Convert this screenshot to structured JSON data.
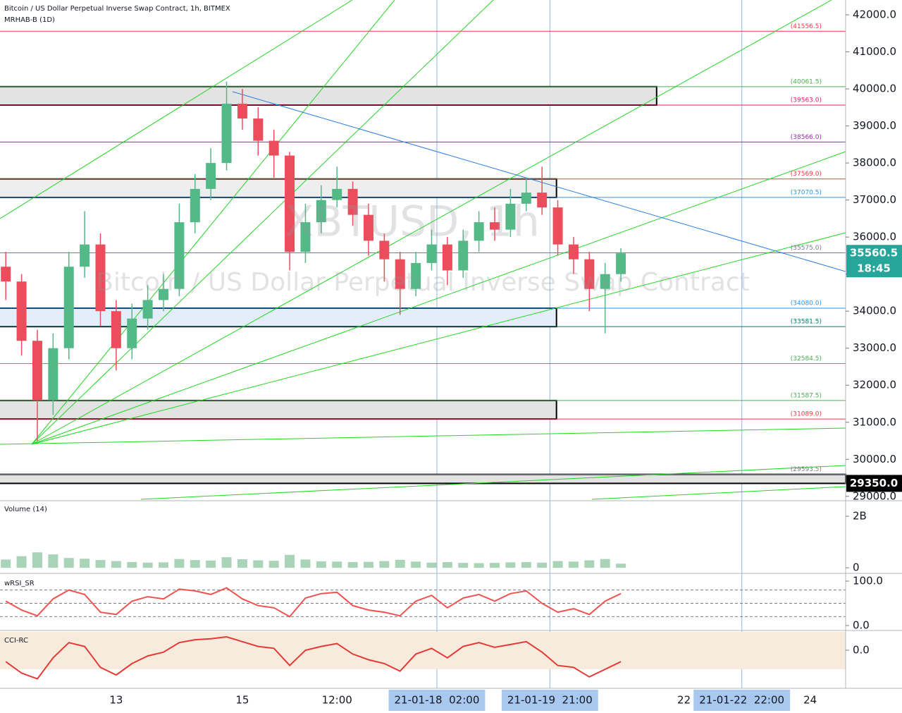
{
  "chart_data": [
    {
      "type": "candlestick",
      "title": "Bitcoin / US Dollar Perpetual Inverse Swap Contract, 1h, BITMEX",
      "subtitle": "MRHAB-B (1D)",
      "watermark": "XBTUSD, 1h",
      "watermark_subtitle": "Bitcoin / US Dollar Perpetual Inverse Swap Contract",
      "x": [
        -42,
        -36,
        -30,
        -24,
        -18,
        -12,
        -6,
        0,
        6,
        12,
        18,
        24,
        30,
        36,
        42,
        48,
        54,
        60,
        66,
        72,
        78,
        84,
        90,
        96,
        102,
        108,
        114,
        120,
        126,
        132,
        138,
        144,
        150,
        156,
        162,
        168,
        174,
        180,
        186,
        192
      ],
      "open": [
        35200,
        34800,
        33200,
        31600,
        33000,
        35200,
        35800,
        34000,
        33000,
        33800,
        34300,
        34600,
        36400,
        37300,
        38000,
        39600,
        39200,
        38600,
        38200,
        35600,
        36400,
        37000,
        37300,
        36600,
        35900,
        35400,
        34600,
        35300,
        35800,
        35100,
        35900,
        36400,
        36200,
        36900,
        37200,
        36800,
        35800,
        35400,
        34600,
        35000
      ],
      "high": [
        35600,
        35000,
        33500,
        33400,
        35600,
        36700,
        36100,
        34300,
        34200,
        34700,
        35000,
        36900,
        37700,
        38400,
        40200,
        40000,
        39500,
        38900,
        38300,
        36900,
        37400,
        37900,
        37500,
        36900,
        36100,
        35600,
        35600,
        36200,
        36000,
        36200,
        36700,
        36800,
        37300,
        37600,
        37900,
        37000,
        36000,
        35600,
        35300,
        35700
      ],
      "low": [
        34300,
        32800,
        30500,
        31200,
        32700,
        34900,
        33600,
        32400,
        32700,
        33500,
        34000,
        34400,
        36100,
        37000,
        37800,
        38900,
        38200,
        37600,
        35100,
        35300,
        36100,
        36800,
        36300,
        35500,
        34800,
        33900,
        34400,
        35100,
        34700,
        34900,
        35600,
        35900,
        36000,
        36700,
        36600,
        35500,
        35000,
        34000,
        33400,
        34800
      ],
      "close": [
        34800,
        33200,
        31600,
        33000,
        35200,
        35800,
        34000,
        33000,
        33800,
        34300,
        34600,
        36400,
        37300,
        38000,
        39600,
        39200,
        38600,
        38200,
        35600,
        36400,
        37000,
        37300,
        36600,
        35900,
        35400,
        34600,
        35300,
        35800,
        35100,
        35900,
        36400,
        36200,
        36900,
        37200,
        36800,
        35800,
        35400,
        34600,
        35000,
        35560.5
      ],
      "up_color": "#53b987",
      "down_color": "#eb4d5c",
      "xlim": [
        -44.2,
        277.5
      ],
      "xticks": [
        {
          "value": 0,
          "label": "13"
        },
        {
          "value": 48,
          "label": "15"
        },
        {
          "value": 84,
          "label": "12:00"
        },
        {
          "value": 122,
          "label": "21-01-18  02:00"
        },
        {
          "value": 165,
          "label": "21-01-19  21:00"
        },
        {
          "value": 216,
          "label": "22"
        },
        {
          "value": 238,
          "label": "21-01-22  22:00"
        },
        {
          "value": 264,
          "label": "24"
        }
      ],
      "highlighted_xticks": [
        122,
        165,
        238
      ],
      "ylim": [
        28920,
        42400
      ],
      "yticks": [
        {
          "value": 29000,
          "label": "29000.0"
        },
        {
          "value": 30000,
          "label": "30000.0"
        },
        {
          "value": 31000,
          "label": "31000.0"
        },
        {
          "value": 32000,
          "label": "32000.0"
        },
        {
          "value": 33000,
          "label": "33000.0"
        },
        {
          "value": 34000,
          "label": "34000.0"
        },
        {
          "value": 35000,
          "label": "35000.0"
        },
        {
          "value": 36000,
          "label": "36000.0"
        },
        {
          "value": 37000,
          "label": "37000.0"
        },
        {
          "value": 38000,
          "label": "38000.0"
        },
        {
          "value": 39000,
          "label": "39000.0"
        },
        {
          "value": 40000,
          "label": "40000.0"
        },
        {
          "value": 41000,
          "label": "41000.0"
        },
        {
          "value": 42000,
          "label": "42000.0"
        }
      ],
      "levels": [
        {
          "value": 41556.5,
          "label": "(41556.5)",
          "color": "#f23645"
        },
        {
          "value": 40061.5,
          "label": "(40061.5)",
          "color": "#4caf50"
        },
        {
          "value": 39563.0,
          "label": "(39563.0)",
          "color": "#e91e63"
        },
        {
          "value": 38566.0,
          "label": "(38566.0)",
          "color": "#9c27b0"
        },
        {
          "value": 37569.0,
          "label": "(37569.0)",
          "color": "#f23645"
        },
        {
          "value": 37070.5,
          "label": "(37070.5)",
          "color": "#2196f3"
        },
        {
          "value": 35575.0,
          "label": "(35575.0)",
          "color": "#787b86"
        },
        {
          "value": 34080.0,
          "label": "(34080.0)",
          "color": "#2196f3"
        },
        {
          "value": 33581.5,
          "label": "(33581.5)",
          "color": "#00796b"
        },
        {
          "value": 32584.5,
          "label": "(32584.5)",
          "color": "#4caf50"
        },
        {
          "value": 31587.5,
          "label": "(31587.5)",
          "color": "#4caf50"
        },
        {
          "value": 31089.0,
          "label": "(31089.0)",
          "color": "#f23645"
        },
        {
          "value": 29593.5,
          "label": "(29593.5)",
          "color": "#787b86"
        }
      ],
      "zones": [
        {
          "low": 39563.0,
          "high": 40061.5,
          "end": 205.6,
          "color": "#e3e3e3"
        },
        {
          "low": 37070.5,
          "high": 37569.0,
          "end": 167.5,
          "color": "#eeeeee"
        },
        {
          "low": 33581.5,
          "high": 34080.0,
          "end": 167.5,
          "color": "#e3eefa"
        },
        {
          "low": 31089.0,
          "high": 31587.5,
          "end": 167.5,
          "color": "#e3e3e3"
        },
        {
          "low": 29350.0,
          "high": 29593.5,
          "end": 277.5,
          "color": "#e3e3e3"
        }
      ],
      "price_tags": [
        {
          "value": 35560.5,
          "countdown": "18:45",
          "color": "#26a69a"
        },
        {
          "value": 29350,
          "label": "29350.0",
          "color": "#000000"
        }
      ]
    },
    {
      "type": "bar",
      "title": "Volume (14)",
      "x": [
        -42,
        -36,
        -30,
        -24,
        -18,
        -12,
        -6,
        0,
        6,
        12,
        18,
        24,
        30,
        36,
        42,
        48,
        54,
        60,
        66,
        72,
        78,
        84,
        90,
        96,
        102,
        108,
        114,
        120,
        126,
        132,
        138,
        144,
        150,
        156,
        162,
        168,
        174,
        180,
        186,
        192
      ],
      "values": [
        320000000,
        450000000,
        600000000,
        520000000,
        380000000,
        350000000,
        300000000,
        260000000,
        220000000,
        200000000,
        210000000,
        340000000,
        300000000,
        280000000,
        410000000,
        330000000,
        290000000,
        270000000,
        500000000,
        320000000,
        250000000,
        240000000,
        220000000,
        230000000,
        260000000,
        310000000,
        240000000,
        200000000,
        220000000,
        190000000,
        180000000,
        190000000,
        210000000,
        220000000,
        200000000,
        260000000,
        240000000,
        290000000,
        340000000,
        160000000
      ],
      "color": "#a9d4b8",
      "ylim": [
        -190000000,
        2550000000
      ],
      "yticks": [
        0,
        {
          "value": 2000000000,
          "label": "2B"
        }
      ]
    },
    {
      "type": "line",
      "title": "wRSI_SR",
      "x": [
        -42,
        -36,
        -30,
        -24,
        -18,
        -12,
        -6,
        0,
        6,
        12,
        18,
        24,
        30,
        36,
        42,
        48,
        54,
        60,
        66,
        72,
        78,
        84,
        90,
        96,
        102,
        108,
        114,
        120,
        126,
        132,
        138,
        144,
        150,
        156,
        162,
        168,
        174,
        180,
        186,
        192
      ],
      "values": [
        55,
        35,
        22,
        60,
        80,
        70,
        30,
        25,
        55,
        65,
        60,
        82,
        78,
        70,
        85,
        60,
        45,
        40,
        20,
        62,
        72,
        75,
        45,
        35,
        30,
        22,
        55,
        68,
        40,
        62,
        70,
        55,
        72,
        78,
        50,
        30,
        38,
        25,
        55,
        72
      ],
      "color": "#ef5350",
      "ylim": [
        -9.5,
        114.3
      ],
      "yticks": [
        {
          "value": 0,
          "label": "0.0"
        },
        {
          "value": 100,
          "label": "100.0"
        }
      ],
      "hlines": [
        20,
        50,
        80
      ]
    },
    {
      "type": "line",
      "title": "CCI-RC",
      "x": [
        -42,
        -36,
        -30,
        -24,
        -18,
        -12,
        -6,
        0,
        6,
        12,
        18,
        24,
        30,
        36,
        42,
        48,
        54,
        60,
        66,
        72,
        78,
        84,
        90,
        96,
        102,
        108,
        114,
        120,
        126,
        132,
        138,
        144,
        150,
        156,
        162,
        168,
        174,
        180,
        186,
        192
      ],
      "values": [
        -60,
        -120,
        -150,
        -40,
        40,
        20,
        -90,
        -130,
        -70,
        -30,
        -10,
        40,
        55,
        60,
        70,
        45,
        20,
        10,
        -80,
        0,
        20,
        35,
        -20,
        -50,
        -70,
        -110,
        -20,
        10,
        -40,
        20,
        40,
        15,
        30,
        45,
        -10,
        -80,
        -90,
        -140,
        -100,
        -60
      ],
      "color": "#e53935",
      "ylim": [
        -196,
        96
      ],
      "yticks": [
        {
          "value": 0,
          "label": "0.0"
        }
      ],
      "band": [
        -100,
        100
      ]
    }
  ]
}
